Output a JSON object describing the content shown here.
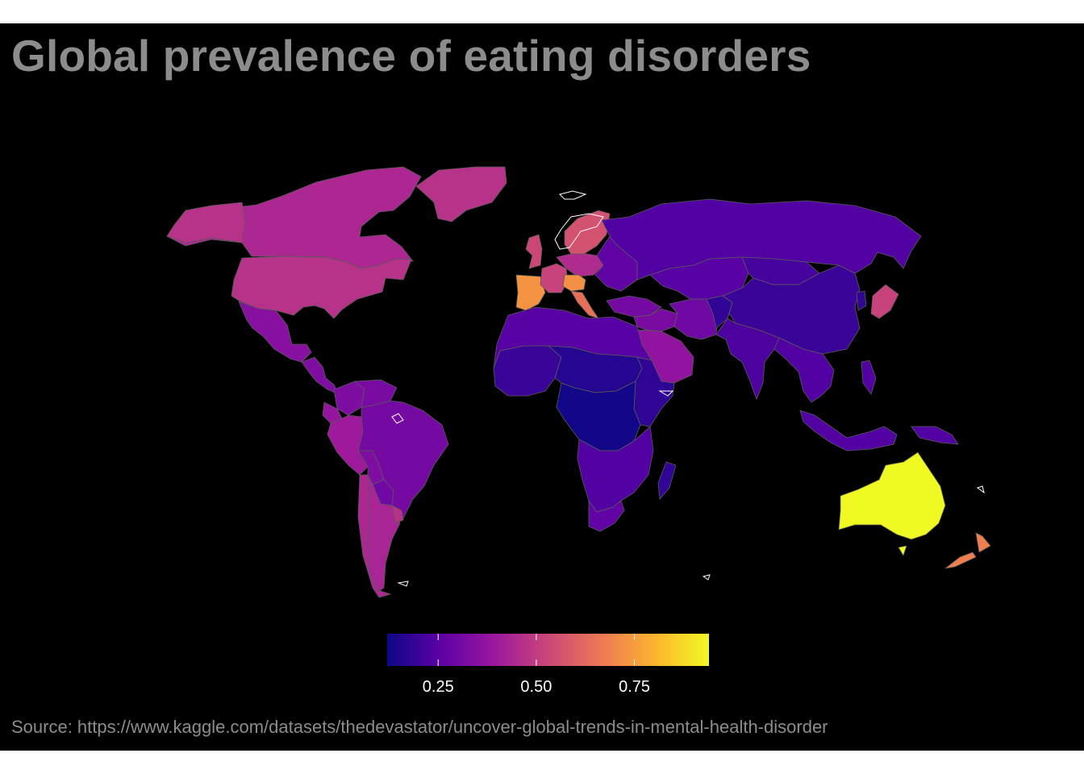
{
  "title": "Global prevalence of eating disorders",
  "source": "Source: https://www.kaggle.com/datasets/thedevastator/uncover-global-trends-in-mental-health-disorder",
  "legend": {
    "min": 0.12,
    "max": 0.94,
    "ticks": [
      {
        "value": 0.25,
        "label": "0.25"
      },
      {
        "value": 0.5,
        "label": "0.50"
      },
      {
        "value": 0.75,
        "label": "0.75"
      }
    ],
    "palette": [
      "#0d0887",
      "#5c01a6",
      "#9c179e",
      "#cc4778",
      "#ed7953",
      "#fdb42f",
      "#f0f921"
    ]
  },
  "colors": {
    "background": "#000000",
    "border": "#5a5a5a",
    "no_data_outline": "#ffffff",
    "text": "#8c8c8c"
  },
  "regions": [
    {
      "name": "Canada",
      "value": 0.44
    },
    {
      "name": "United States",
      "value": 0.47
    },
    {
      "name": "Greenland",
      "value": 0.47
    },
    {
      "name": "Alaska",
      "value": 0.47
    },
    {
      "name": "Mexico",
      "value": 0.35
    },
    {
      "name": "Central America",
      "value": 0.33
    },
    {
      "name": "Colombia",
      "value": 0.33
    },
    {
      "name": "Venezuela",
      "value": 0.32
    },
    {
      "name": "Peru",
      "value": 0.4
    },
    {
      "name": "Ecuador",
      "value": 0.38
    },
    {
      "name": "Brazil",
      "value": 0.31
    },
    {
      "name": "Bolivia",
      "value": 0.33
    },
    {
      "name": "Paraguay",
      "value": 0.3
    },
    {
      "name": "Chile",
      "value": 0.44
    },
    {
      "name": "Argentina",
      "value": 0.43
    },
    {
      "name": "Uruguay",
      "value": 0.47
    },
    {
      "name": "Spain",
      "value": 0.73
    },
    {
      "name": "United Kingdom",
      "value": 0.53
    },
    {
      "name": "France",
      "value": 0.52
    },
    {
      "name": "Central Europe",
      "value": 0.45
    },
    {
      "name": "Austria",
      "value": 0.72
    },
    {
      "name": "Italy",
      "value": 0.64
    },
    {
      "name": "Scandinavia",
      "value": 0.56
    },
    {
      "name": "Eastern Europe",
      "value": 0.27
    },
    {
      "name": "Russia",
      "value": 0.24
    },
    {
      "name": "Turkey",
      "value": 0.31
    },
    {
      "name": "Middle East",
      "value": 0.32
    },
    {
      "name": "Saudi Arabia",
      "value": 0.37
    },
    {
      "name": "Central Asia",
      "value": 0.25
    },
    {
      "name": "Iran",
      "value": 0.3
    },
    {
      "name": "Afghanistan",
      "value": 0.18
    },
    {
      "name": "Mongolia",
      "value": 0.22
    },
    {
      "name": "China",
      "value": 0.2
    },
    {
      "name": "Korea",
      "value": 0.18
    },
    {
      "name": "Japan",
      "value": 0.52
    },
    {
      "name": "India",
      "value": 0.23
    },
    {
      "name": "Southeast Asia",
      "value": 0.24
    },
    {
      "name": "Indonesia",
      "value": 0.24
    },
    {
      "name": "Philippines",
      "value": 0.24
    },
    {
      "name": "Papua New Guinea",
      "value": 0.24
    },
    {
      "name": "North Africa",
      "value": 0.25
    },
    {
      "name": "West Africa",
      "value": 0.2
    },
    {
      "name": "Sahel",
      "value": 0.16
    },
    {
      "name": "Horn of Africa",
      "value": 0.18
    },
    {
      "name": "Central Africa",
      "value": 0.13
    },
    {
      "name": "Southern Africa",
      "value": 0.24
    },
    {
      "name": "South Africa",
      "value": 0.27
    },
    {
      "name": "Madagascar",
      "value": 0.18
    },
    {
      "name": "Australia",
      "value": 0.94
    },
    {
      "name": "New Zealand",
      "value": 0.68
    }
  ]
}
